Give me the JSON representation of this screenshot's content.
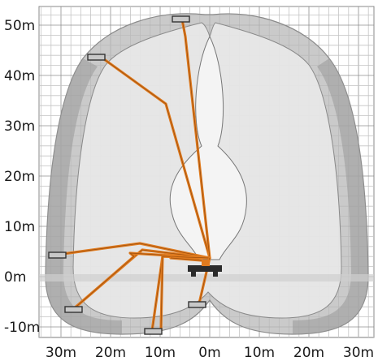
{
  "chart_data": {
    "type": "diagram",
    "y_axis_labels": [
      "50m",
      "40m",
      "30m",
      "20m",
      "10m",
      "0m",
      "-10m"
    ],
    "x_axis_labels": [
      "30m",
      "20m",
      "10m",
      "0m",
      "10m",
      "20m",
      "30m"
    ],
    "x_ticks": [
      -30,
      -20,
      -10,
      0,
      10,
      20,
      30
    ],
    "y_ticks": [
      50,
      40,
      30,
      20,
      10,
      0,
      -10
    ],
    "boom_color": "#e07b1f",
    "envelope_outer_color": "#b3b3b3",
    "envelope_inner_color": "#e6e6e6"
  }
}
